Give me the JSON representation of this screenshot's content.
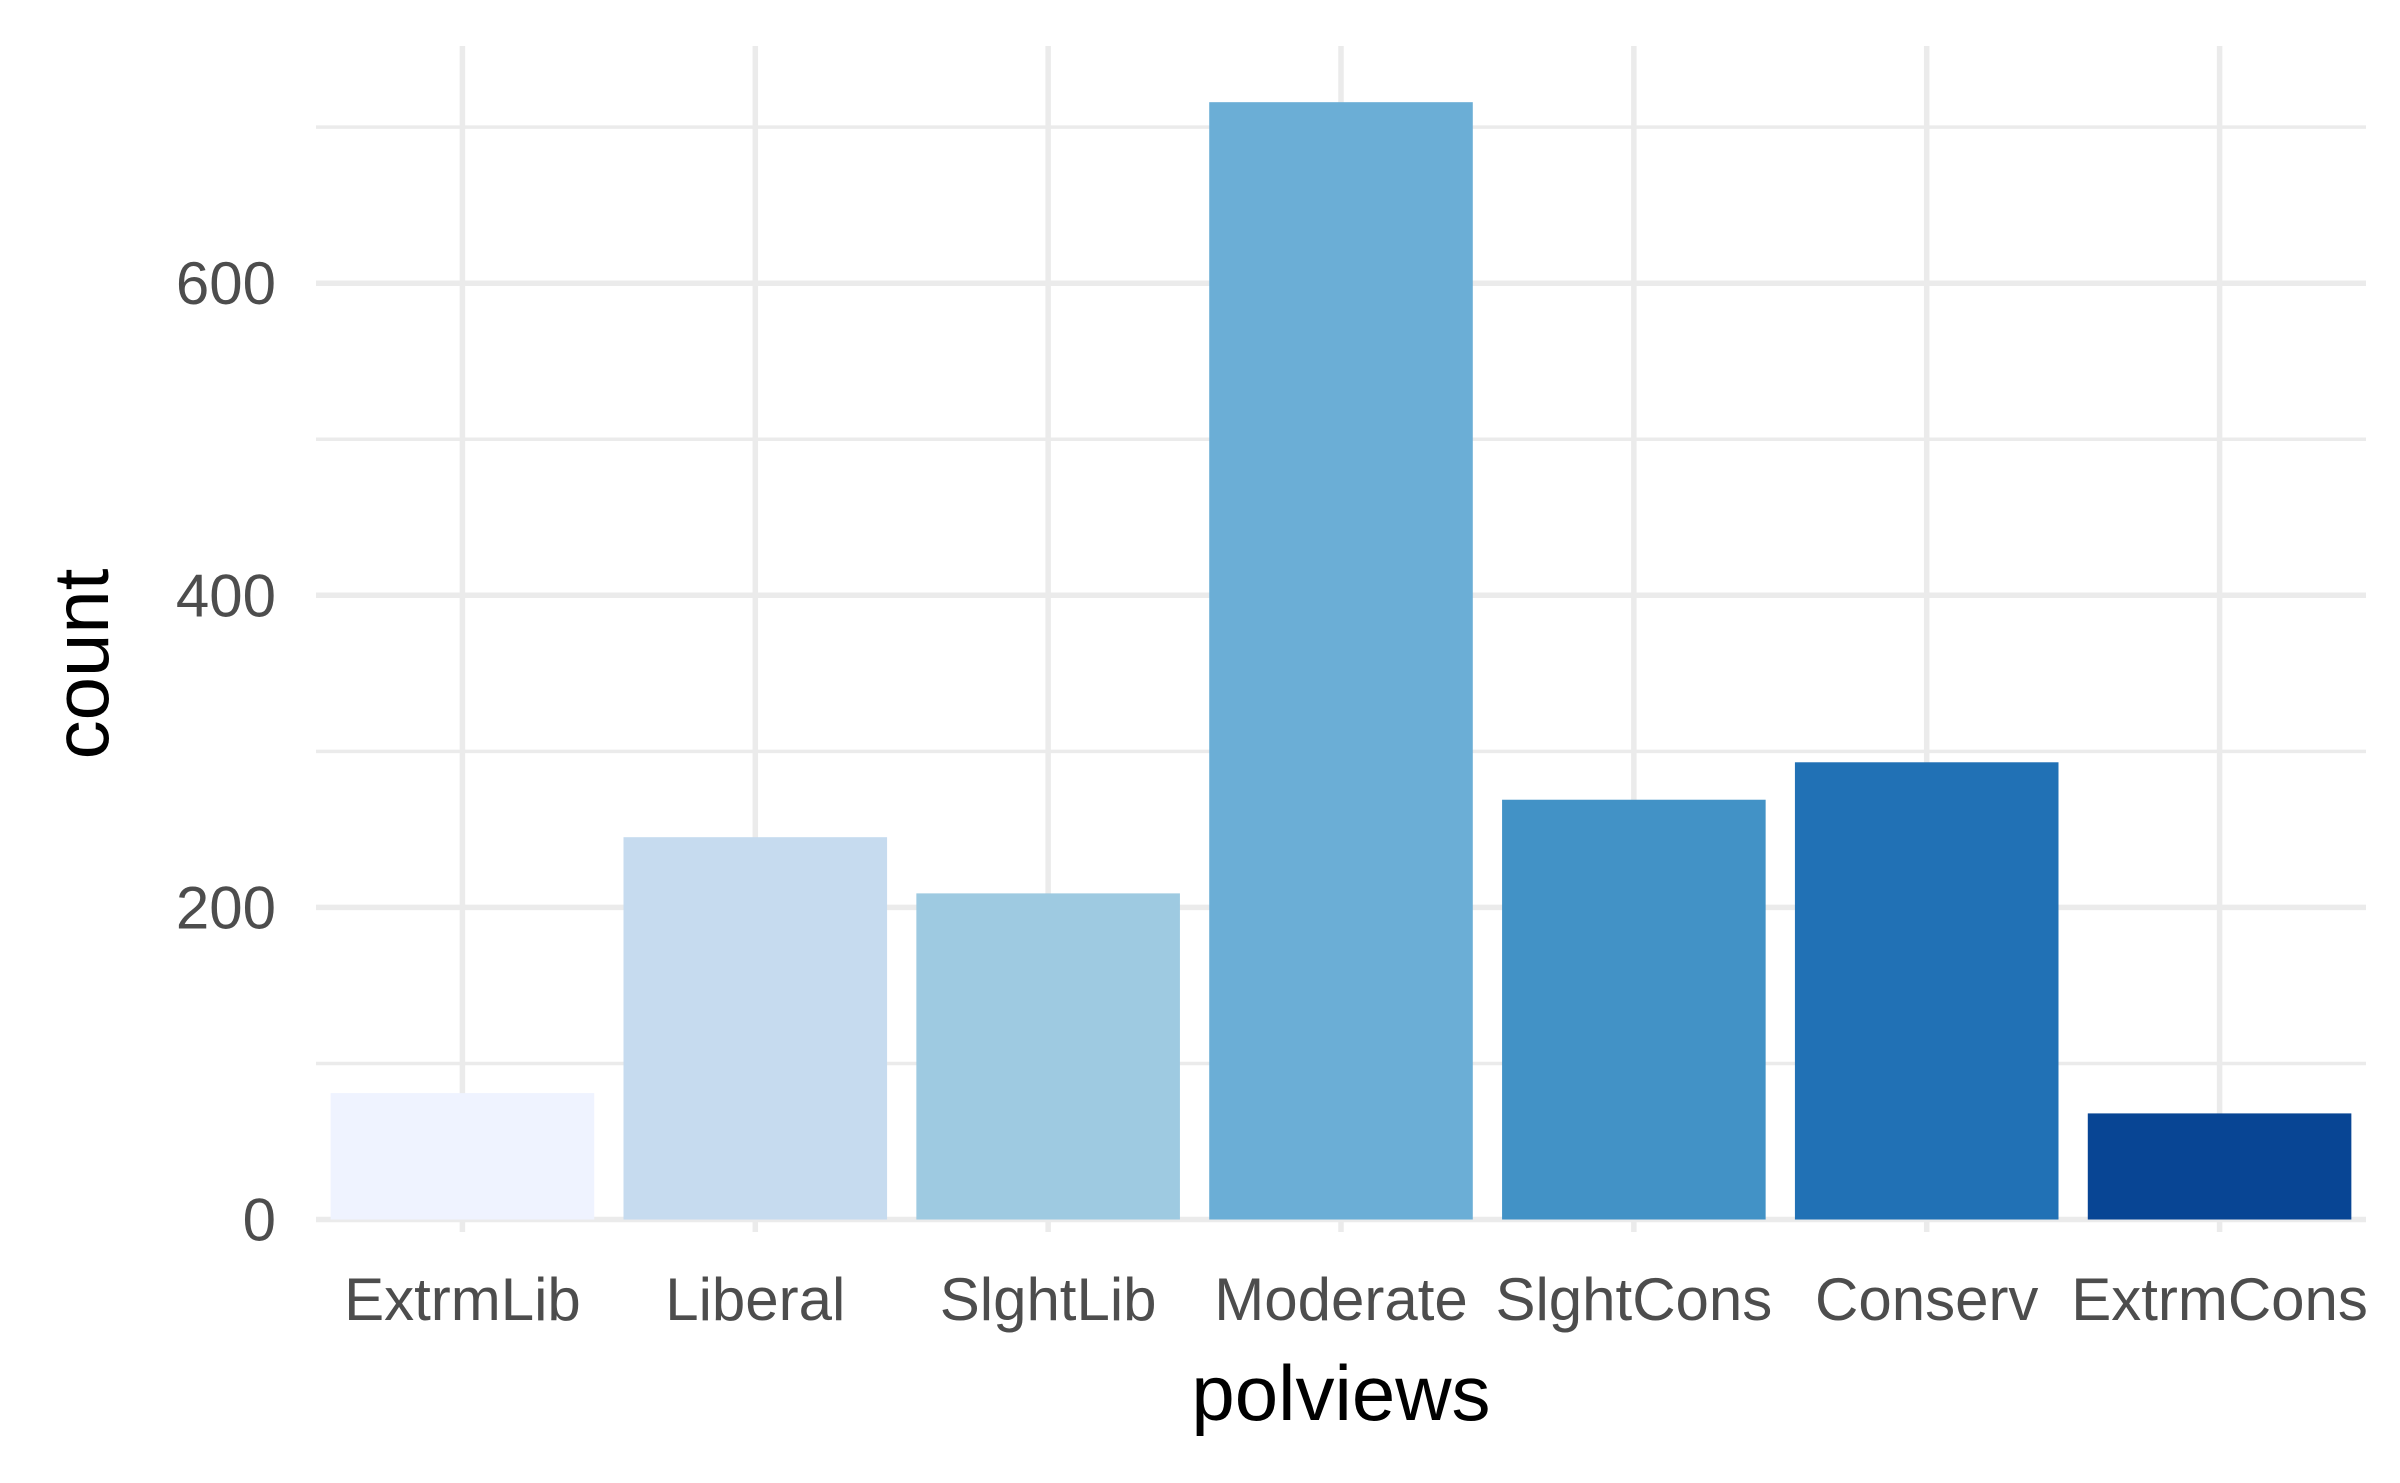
{
  "chart_data": {
    "type": "bar",
    "xlabel": "polviews",
    "ylabel": "count",
    "categories": [
      "ExtrmLib",
      "Liberal",
      "SlghtLib",
      "Moderate",
      "SlghtCons",
      "Conserv",
      "ExtrmCons"
    ],
    "values": [
      81,
      245,
      209,
      716,
      269,
      293,
      68
    ],
    "colors": [
      "#eff3ff",
      "#c6dbef",
      "#9ecae1",
      "#6baed6",
      "#4292c6",
      "#2171b5",
      "#084594"
    ],
    "yticks": [
      "0",
      "200",
      "400",
      "600"
    ],
    "ylim": [
      -8,
      752
    ],
    "grid": true,
    "legend": "none"
  }
}
